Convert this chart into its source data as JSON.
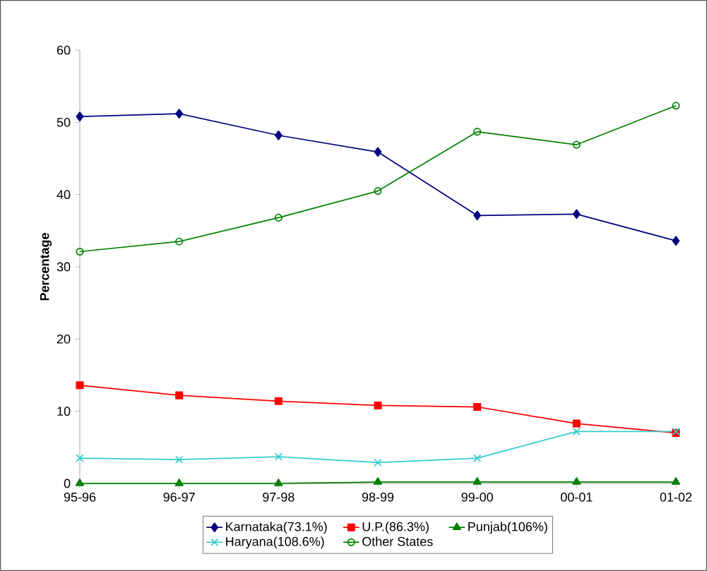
{
  "chart_data": {
    "type": "line",
    "ylabel": "**Percentage**",
    "categories": [
      "95-96",
      "96-97",
      "97-98",
      "98-99",
      "99-00",
      "00-01",
      "01-02"
    ],
    "series": [
      {
        "name": "Karnataka(73.1%)",
        "color": "#000080",
        "marker": "diamond",
        "values": [
          50.8,
          51.2,
          48.2,
          45.9,
          37.1,
          37.3,
          33.6
        ]
      },
      {
        "name": "U.P.(86.3%)",
        "color": "#ff0000",
        "marker": "square",
        "values": [
          13.6,
          12.2,
          11.4,
          10.8,
          10.6,
          8.3,
          7.0
        ]
      },
      {
        "name": "Punjab(106%)",
        "color": "#008000",
        "marker": "triangle",
        "values": [
          0,
          0,
          0,
          0.2,
          0.2,
          0.2,
          0.2
        ]
      },
      {
        "name": "Haryana(108.6%)",
        "color": "#33cccc",
        "marker": "cross",
        "values": [
          3.5,
          3.3,
          3.7,
          2.9,
          3.5,
          7.2,
          7.2
        ]
      },
      {
        "name": "Other States",
        "color": "#008000",
        "marker": "circle",
        "values": [
          32.1,
          33.5,
          36.8,
          40.5,
          48.7,
          46.9,
          52.3
        ]
      }
    ],
    "ylim": [
      0,
      60
    ],
    "yticks": [
      0,
      10,
      20,
      30,
      40,
      50,
      60
    ],
    "grid": false,
    "legend": "bottom",
    "line_style": "solid"
  }
}
